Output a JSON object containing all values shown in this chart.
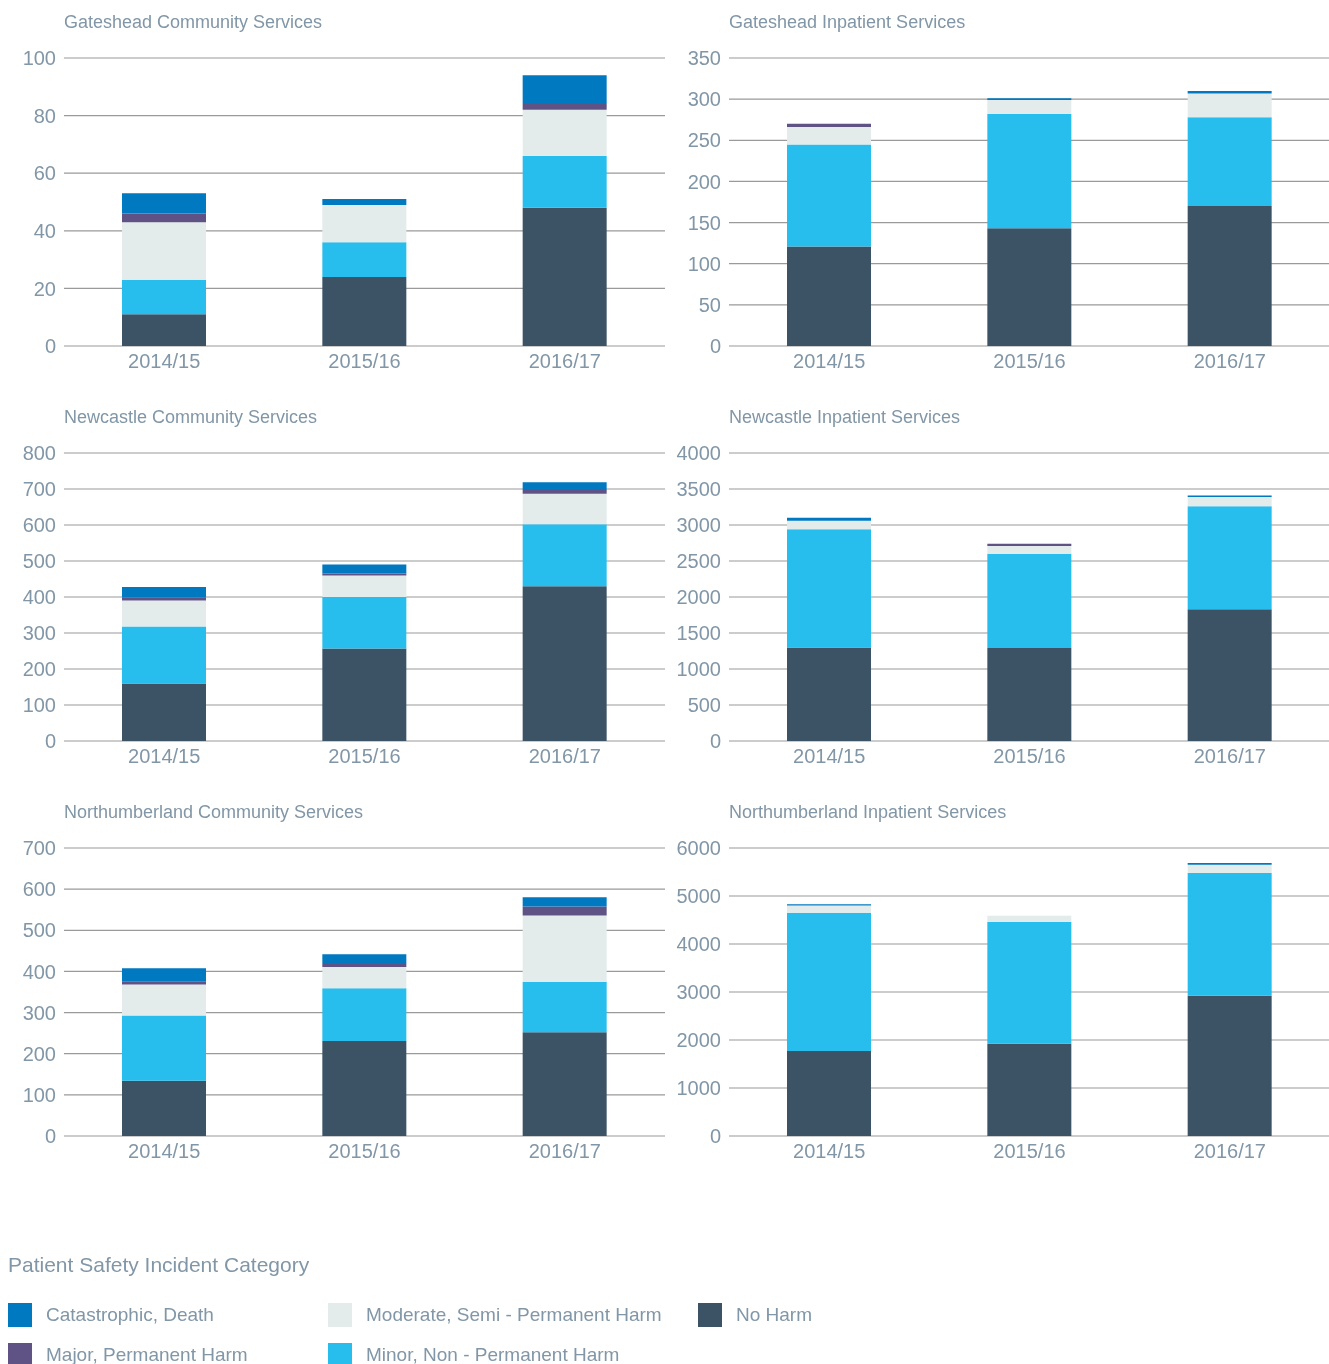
{
  "chart_data": [
    {
      "type": "bar",
      "title": "Gateshead Community Services",
      "categories": [
        "2014/15",
        "2015/16",
        "2016/17"
      ],
      "stacked": true,
      "ylim": [
        0,
        100
      ],
      "yticks": [
        0,
        20,
        40,
        60,
        80,
        100
      ],
      "grid": "y",
      "series": [
        {
          "color": "#3c5366",
          "values": [
            11,
            24,
            48
          ]
        },
        {
          "color": "#27bdec",
          "values": [
            12,
            12,
            18
          ]
        },
        {
          "color": "#e3eceb",
          "values": [
            20,
            13,
            16
          ]
        },
        {
          "color": "#5f5385",
          "values": [
            3,
            0,
            2
          ]
        },
        {
          "color": "#0079c1",
          "values": [
            7,
            2,
            10
          ]
        }
      ]
    },
    {
      "type": "bar",
      "title": "Gateshead Inpatient Services",
      "categories": [
        "2014/15",
        "2015/16",
        "2016/17"
      ],
      "stacked": true,
      "ylim": [
        0,
        350
      ],
      "yticks": [
        0,
        50,
        100,
        150,
        200,
        250,
        300,
        350
      ],
      "grid": "y",
      "series": [
        {
          "color": "#3c5366",
          "values": [
            121,
            143,
            170
          ]
        },
        {
          "color": "#27bdec",
          "values": [
            124,
            139,
            108
          ]
        },
        {
          "color": "#e3eceb",
          "values": [
            21,
            17,
            29
          ]
        },
        {
          "color": "#5f5385",
          "values": [
            4,
            0,
            0
          ]
        },
        {
          "color": "#0079c1",
          "values": [
            0,
            2,
            3
          ]
        }
      ]
    },
    {
      "type": "bar",
      "title": "Newcastle Community Services",
      "categories": [
        "2014/15",
        "2015/16",
        "2016/17"
      ],
      "stacked": true,
      "ylim": [
        0,
        800
      ],
      "yticks": [
        0,
        100,
        200,
        300,
        400,
        500,
        600,
        700,
        800
      ],
      "grid": "y",
      "series": [
        {
          "color": "#3c5366",
          "values": [
            160,
            257,
            430
          ]
        },
        {
          "color": "#27bdec",
          "values": [
            158,
            143,
            172
          ]
        },
        {
          "color": "#e3eceb",
          "values": [
            72,
            60,
            85
          ]
        },
        {
          "color": "#5f5385",
          "values": [
            8,
            5,
            13
          ]
        },
        {
          "color": "#0079c1",
          "values": [
            30,
            25,
            19
          ]
        }
      ]
    },
    {
      "type": "bar",
      "title": "Newcastle Inpatient Services",
      "categories": [
        "2014/15",
        "2015/16",
        "2016/17"
      ],
      "stacked": true,
      "ylim": [
        0,
        4000
      ],
      "yticks": [
        0,
        500,
        1000,
        1500,
        2000,
        2500,
        3000,
        3500,
        4000
      ],
      "grid": "y",
      "series": [
        {
          "color": "#3c5366",
          "values": [
            1300,
            1290,
            1830
          ]
        },
        {
          "color": "#27bdec",
          "values": [
            1640,
            1310,
            1430
          ]
        },
        {
          "color": "#e3eceb",
          "values": [
            120,
            110,
            130
          ]
        },
        {
          "color": "#5f5385",
          "values": [
            0,
            30,
            0
          ]
        },
        {
          "color": "#0079c1",
          "values": [
            40,
            0,
            20
          ]
        }
      ]
    },
    {
      "type": "bar",
      "title": "Northumberland Community Services",
      "categories": [
        "2014/15",
        "2015/16",
        "2016/17"
      ],
      "stacked": true,
      "ylim": [
        0,
        700
      ],
      "yticks": [
        0,
        100,
        200,
        300,
        400,
        500,
        600,
        700
      ],
      "grid": "y",
      "series": [
        {
          "color": "#3c5366",
          "values": [
            134,
            231,
            252
          ]
        },
        {
          "color": "#27bdec",
          "values": [
            159,
            128,
            123
          ]
        },
        {
          "color": "#e3eceb",
          "values": [
            75,
            52,
            161
          ]
        },
        {
          "color": "#5f5385",
          "values": [
            7,
            7,
            22
          ]
        },
        {
          "color": "#0079c1",
          "values": [
            33,
            24,
            22
          ]
        }
      ]
    },
    {
      "type": "bar",
      "title": "Northumberland Inpatient Services",
      "categories": [
        "2014/15",
        "2015/16",
        "2016/17"
      ],
      "stacked": true,
      "ylim": [
        0,
        6000
      ],
      "yticks": [
        0,
        1000,
        2000,
        3000,
        4000,
        5000,
        6000
      ],
      "grid": "y",
      "legend": "bottom",
      "legend_title": "Patient Safety Incident Category",
      "series": [
        {
          "name": "No Harm",
          "color": "#3c5366",
          "values": [
            1770,
            1920,
            2920
          ]
        },
        {
          "name": "Minor, Non - Permanent Harm",
          "color": "#27bdec",
          "values": [
            2880,
            2540,
            2560
          ]
        },
        {
          "name": "Moderate, Semi - Permanent Harm",
          "color": "#e3eceb",
          "values": [
            150,
            130,
            170
          ]
        },
        {
          "name": "Major, Permanent Harm",
          "color": "#5f5385",
          "values": [
            0,
            0,
            0
          ]
        },
        {
          "name": "Catastrophic, Death",
          "color": "#0079c1",
          "values": [
            30,
            0,
            40
          ]
        }
      ]
    }
  ]
}
